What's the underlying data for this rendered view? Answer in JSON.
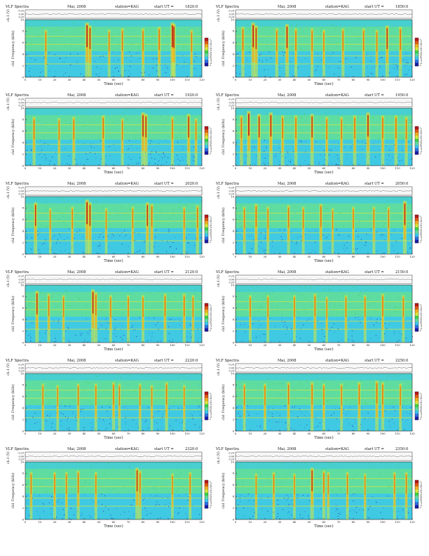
{
  "colors": {
    "background": "#ffffff",
    "axis": "#222222",
    "colormap": [
      "#1a1aa8",
      "#2f6fe0",
      "#39c6ef",
      "#5fdca0",
      "#3fd04a",
      "#d8e83c",
      "#f0b020",
      "#e05a14",
      "#b8161a"
    ]
  },
  "labels": {
    "header_left": "VLF Spectra",
    "header_date": "Mai, 2008",
    "header_station": "station=KAG",
    "header_start": "start UT =",
    "ch_label": "ch.1 (V)",
    "freq_label": "ch1 Frequency (kHz)",
    "cbar_label": "log(PSD)(V²/Hz)",
    "time_label": "Time (sec)"
  },
  "ticks": {
    "time": [
      "0",
      "10",
      "20",
      "30",
      "40",
      "50",
      "60",
      "70",
      "80",
      "90",
      "100",
      "110",
      "120"
    ],
    "freq": [
      "0",
      "2",
      "4",
      "6",
      "8",
      "10"
    ],
    "ch": [
      "-0.20",
      "0.00",
      "0.20"
    ],
    "cbar": [
      "-1",
      "-3"
    ]
  },
  "chart_data": [
    {
      "type": "heatmap",
      "start_ut": "1820:0",
      "xlim": [
        0,
        120
      ],
      "ylim": [
        0,
        10
      ],
      "bursts": [
        {
          "t": 14,
          "s": 0.5
        },
        {
          "t": 42,
          "s": 1
        },
        {
          "t": 44,
          "s": 0.8
        },
        {
          "t": 57,
          "s": 0.5
        },
        {
          "t": 66,
          "s": 0.6
        },
        {
          "t": 80,
          "s": 0.6
        },
        {
          "t": 91,
          "s": 0.7
        },
        {
          "t": 100,
          "s": 1
        },
        {
          "t": 101,
          "s": 0.9
        },
        {
          "t": 113,
          "s": 0.5
        }
      ]
    },
    {
      "type": "heatmap",
      "start_ut": "1850:0",
      "xlim": [
        0,
        120
      ],
      "ylim": [
        0,
        10
      ],
      "bursts": [
        {
          "t": 5,
          "s": 0.7
        },
        {
          "t": 12,
          "s": 1
        },
        {
          "t": 14,
          "s": 0.8
        },
        {
          "t": 28,
          "s": 0.6
        },
        {
          "t": 35,
          "s": 0.9
        },
        {
          "t": 41,
          "s": 0.6
        },
        {
          "t": 52,
          "s": 0.6
        },
        {
          "t": 60,
          "s": 0.5
        },
        {
          "t": 73,
          "s": 0.6
        },
        {
          "t": 87,
          "s": 0.6
        },
        {
          "t": 96,
          "s": 0.5
        },
        {
          "t": 103,
          "s": 0.8
        },
        {
          "t": 112,
          "s": 0.7
        }
      ]
    },
    {
      "type": "heatmap",
      "start_ut": "1920:0",
      "xlim": [
        0,
        120
      ],
      "ylim": [
        0,
        10
      ],
      "bursts": [
        {
          "t": 6,
          "s": 0.6
        },
        {
          "t": 23,
          "s": 0.5
        },
        {
          "t": 33,
          "s": 0.6
        },
        {
          "t": 53,
          "s": 0.7
        },
        {
          "t": 66,
          "s": 0.5
        },
        {
          "t": 80,
          "s": 0.9
        },
        {
          "t": 82,
          "s": 0.8
        },
        {
          "t": 100,
          "s": 0.6
        },
        {
          "t": 111,
          "s": 0.8
        },
        {
          "t": 116,
          "s": 0.5
        }
      ]
    },
    {
      "type": "heatmap",
      "start_ut": "1950:0",
      "xlim": [
        0,
        120
      ],
      "ylim": [
        0,
        10
      ],
      "bursts": [
        {
          "t": 4,
          "s": 0.7
        },
        {
          "t": 9,
          "s": 1
        },
        {
          "t": 16,
          "s": 0.8
        },
        {
          "t": 24,
          "s": 0.9
        },
        {
          "t": 32,
          "s": 0.7
        },
        {
          "t": 41,
          "s": 0.7
        },
        {
          "t": 52,
          "s": 0.8
        },
        {
          "t": 62,
          "s": 0.6
        },
        {
          "t": 72,
          "s": 0.6
        },
        {
          "t": 81,
          "s": 0.7
        },
        {
          "t": 90,
          "s": 0.9
        },
        {
          "t": 100,
          "s": 0.7
        },
        {
          "t": 109,
          "s": 0.7
        },
        {
          "t": 116,
          "s": 0.6
        }
      ]
    },
    {
      "type": "heatmap",
      "start_ut": "2020:0",
      "xlim": [
        0,
        120
      ],
      "ylim": [
        0,
        10
      ],
      "bursts": [
        {
          "t": 7,
          "s": 0.8
        },
        {
          "t": 17,
          "s": 0.4
        },
        {
          "t": 32,
          "s": 0.5
        },
        {
          "t": 42,
          "s": 1
        },
        {
          "t": 44,
          "s": 0.8
        },
        {
          "t": 55,
          "s": 0.4
        },
        {
          "t": 73,
          "s": 0.5
        },
        {
          "t": 83,
          "s": 0.8
        },
        {
          "t": 86,
          "s": 0.7
        },
        {
          "t": 108,
          "s": 0.5
        },
        {
          "t": 117,
          "s": 0.6
        }
      ]
    },
    {
      "type": "heatmap",
      "start_ut": "2050:0",
      "xlim": [
        0,
        120
      ],
      "ylim": [
        0,
        10
      ],
      "bursts": [
        {
          "t": 6,
          "s": 0.5
        },
        {
          "t": 14,
          "s": 0.7
        },
        {
          "t": 22,
          "s": 0.5
        },
        {
          "t": 36,
          "s": 0.6
        },
        {
          "t": 46,
          "s": 0.5
        },
        {
          "t": 58,
          "s": 0.7
        },
        {
          "t": 66,
          "s": 0.4
        },
        {
          "t": 80,
          "s": 0.5
        },
        {
          "t": 94,
          "s": 0.5
        },
        {
          "t": 104,
          "s": 0.5
        },
        {
          "t": 115,
          "s": 0.9
        }
      ]
    },
    {
      "type": "heatmap",
      "start_ut": "2120:0",
      "xlim": [
        0,
        120
      ],
      "ylim": [
        0,
        10
      ],
      "bursts": [
        {
          "t": 8,
          "s": 0.8
        },
        {
          "t": 16,
          "s": 0.6
        },
        {
          "t": 26,
          "s": 0.5
        },
        {
          "t": 46,
          "s": 0.9
        },
        {
          "t": 48,
          "s": 0.7
        },
        {
          "t": 58,
          "s": 0.5
        },
        {
          "t": 70,
          "s": 0.5
        },
        {
          "t": 80,
          "s": 0.5
        },
        {
          "t": 95,
          "s": 0.6
        },
        {
          "t": 108,
          "s": 0.6
        },
        {
          "t": 114,
          "s": 0.5
        }
      ]
    },
    {
      "type": "heatmap",
      "start_ut": "2150:0",
      "xlim": [
        0,
        120
      ],
      "ylim": [
        0,
        10
      ],
      "bursts": [
        {
          "t": 10,
          "s": 0.5
        },
        {
          "t": 22,
          "s": 0.5
        },
        {
          "t": 40,
          "s": 0.5
        },
        {
          "t": 54,
          "s": 0.6
        },
        {
          "t": 62,
          "s": 0.4
        },
        {
          "t": 75,
          "s": 0.5
        },
        {
          "t": 88,
          "s": 0.5
        },
        {
          "t": 100,
          "s": 0.6
        },
        {
          "t": 114,
          "s": 0.5
        }
      ]
    },
    {
      "type": "heatmap",
      "start_ut": "2220:0",
      "xlim": [
        0,
        120
      ],
      "ylim": [
        0,
        10
      ],
      "bursts": [
        {
          "t": 12,
          "s": 0.5
        },
        {
          "t": 22,
          "s": 0.4
        },
        {
          "t": 36,
          "s": 0.5
        },
        {
          "t": 48,
          "s": 0.5
        },
        {
          "t": 60,
          "s": 0.6
        },
        {
          "t": 64,
          "s": 0.5
        },
        {
          "t": 78,
          "s": 0.5
        },
        {
          "t": 86,
          "s": 0.4
        },
        {
          "t": 96,
          "s": 0.6
        },
        {
          "t": 108,
          "s": 0.4
        }
      ]
    },
    {
      "type": "heatmap",
      "start_ut": "2250:0",
      "xlim": [
        0,
        120
      ],
      "ylim": [
        0,
        10
      ],
      "bursts": [
        {
          "t": 6,
          "s": 0.5
        },
        {
          "t": 20,
          "s": 0.5
        },
        {
          "t": 36,
          "s": 0.6
        },
        {
          "t": 52,
          "s": 0.6
        },
        {
          "t": 60,
          "s": 0.5
        },
        {
          "t": 72,
          "s": 0.5
        },
        {
          "t": 84,
          "s": 0.6
        },
        {
          "t": 96,
          "s": 0.7
        },
        {
          "t": 100,
          "s": 0.6
        },
        {
          "t": 112,
          "s": 0.5
        }
      ]
    },
    {
      "type": "heatmap",
      "start_ut": "2320:0",
      "xlim": [
        0,
        120
      ],
      "ylim": [
        0,
        10
      ],
      "bursts": [
        {
          "t": 4,
          "s": 0.5
        },
        {
          "t": 20,
          "s": 0.5
        },
        {
          "t": 28,
          "s": 0.5
        },
        {
          "t": 36,
          "s": 0.6
        },
        {
          "t": 48,
          "s": 0.5
        },
        {
          "t": 76,
          "s": 0.8
        },
        {
          "t": 78,
          "s": 0.6
        },
        {
          "t": 100,
          "s": 0.4
        },
        {
          "t": 112,
          "s": 0.5
        }
      ]
    },
    {
      "type": "heatmap",
      "start_ut": "2350:0",
      "xlim": [
        0,
        120
      ],
      "ylim": [
        0,
        10
      ],
      "bursts": [
        {
          "t": 14,
          "s": 0.4
        },
        {
          "t": 26,
          "s": 0.5
        },
        {
          "t": 40,
          "s": 0.4
        },
        {
          "t": 52,
          "s": 0.8
        },
        {
          "t": 60,
          "s": 0.6
        },
        {
          "t": 63,
          "s": 0.5
        },
        {
          "t": 76,
          "s": 0.5
        },
        {
          "t": 88,
          "s": 0.4
        },
        {
          "t": 108,
          "s": 0.5
        },
        {
          "t": 116,
          "s": 0.5
        }
      ]
    }
  ]
}
